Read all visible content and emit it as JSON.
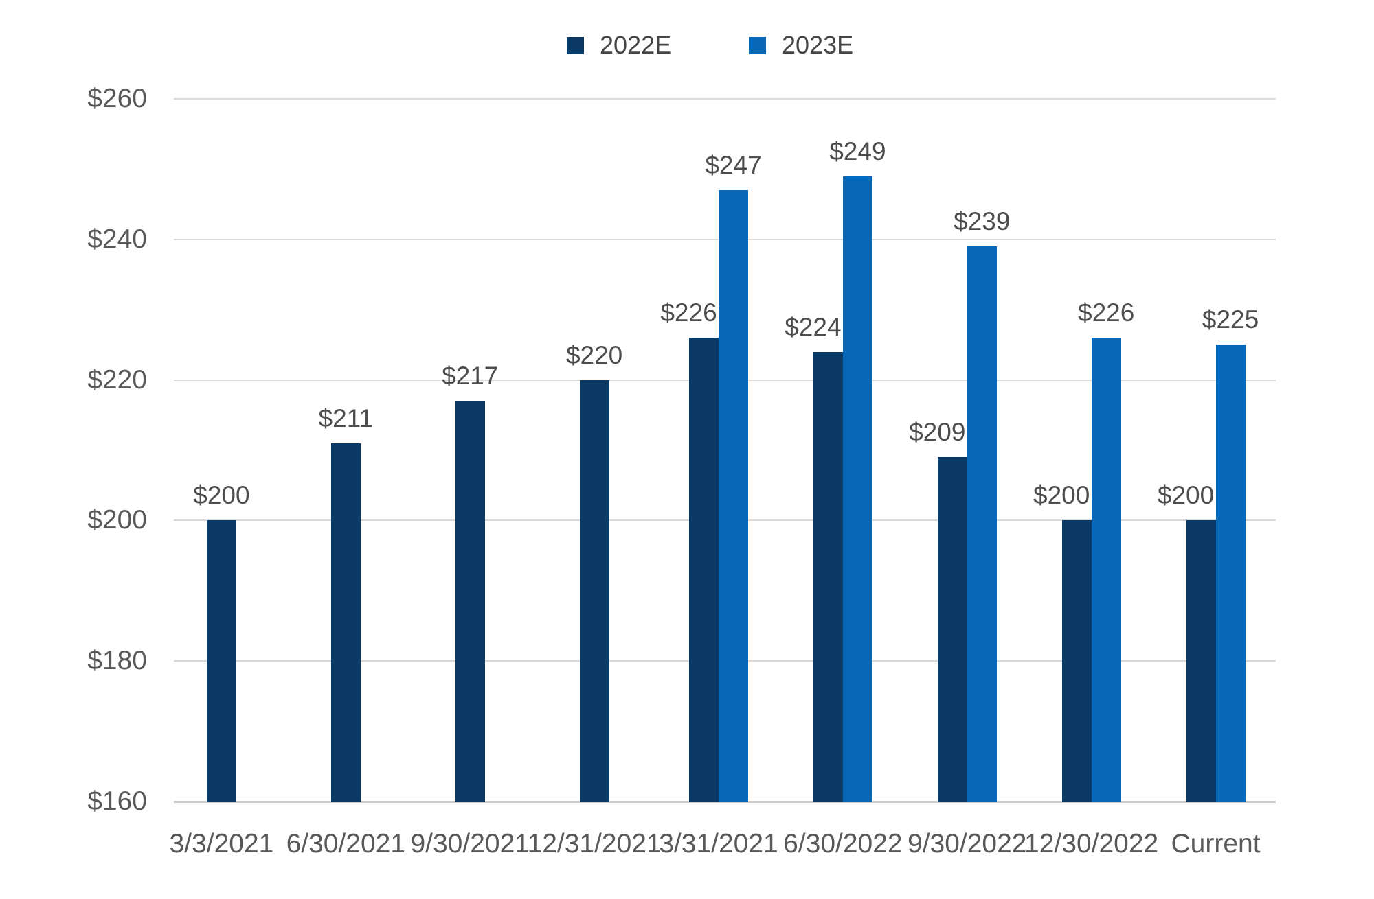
{
  "chart_data": {
    "type": "bar",
    "categories": [
      "3/3/2021",
      "6/30/2021",
      "9/30/2021",
      "12/31/2021",
      "3/31/2021",
      "6/30/2022",
      "9/30/2022",
      "12/30/2022",
      "Current"
    ],
    "series": [
      {
        "name": "2022E",
        "color": "#0c3a66",
        "values": [
          200,
          211,
          217,
          220,
          226,
          224,
          209,
          200,
          200
        ],
        "labels": [
          "$200",
          "$211",
          "$217",
          "$220",
          "$226",
          "$224",
          "$209",
          "$200",
          "$200"
        ]
      },
      {
        "name": "2023E",
        "color": "#0768b8",
        "values": [
          null,
          null,
          null,
          null,
          247,
          249,
          239,
          226,
          225
        ],
        "labels": [
          null,
          null,
          null,
          null,
          "$247",
          "$249",
          "$239",
          "$226",
          "$225"
        ]
      }
    ],
    "title": "",
    "xlabel": "",
    "ylabel": "",
    "ylim": [
      160,
      260
    ],
    "yticks": [
      {
        "value": 160,
        "label": "$160"
      },
      {
        "value": 180,
        "label": "$180"
      },
      {
        "value": 200,
        "label": "$200"
      },
      {
        "value": 220,
        "label": "$220"
      },
      {
        "value": 240,
        "label": "$240"
      },
      {
        "value": 260,
        "label": "$260"
      }
    ],
    "grid": "horizontal",
    "legend_position": "top-center",
    "value_prefix": "$"
  },
  "colors": {
    "grid": "#dadada",
    "axis_line": "#cccccc",
    "axis_text": "#595959",
    "value_text": "#4d4d4d",
    "legend_text": "#454545",
    "background": "#ffffff"
  }
}
